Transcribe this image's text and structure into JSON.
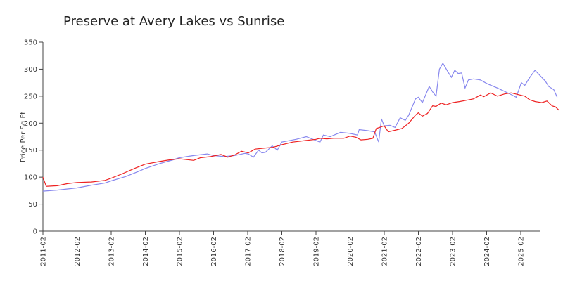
{
  "chart_data": {
    "type": "line",
    "title": "Preserve at Avery Lakes vs Sunrise",
    "xlabel": "",
    "ylabel": "Price Per Sq Ft",
    "ylim": [
      0,
      350
    ],
    "yticks": [
      0,
      50,
      100,
      150,
      200,
      250,
      300,
      350
    ],
    "xlim": [
      2011.083,
      2025.833
    ],
    "xticks": [
      {
        "label": "2011-02",
        "x": 2011.083
      },
      {
        "label": "2012-02",
        "x": 2012.083
      },
      {
        "label": "2013-02",
        "x": 2013.083
      },
      {
        "label": "2014-02",
        "x": 2014.083
      },
      {
        "label": "2015-02",
        "x": 2015.083
      },
      {
        "label": "2016-02",
        "x": 2016.083
      },
      {
        "label": "2017-02",
        "x": 2017.083
      },
      {
        "label": "2018-02",
        "x": 2018.083
      },
      {
        "label": "2019-02",
        "x": 2019.083
      },
      {
        "label": "2020-02",
        "x": 2020.083
      },
      {
        "label": "2021-02",
        "x": 2021.083
      },
      {
        "label": "2022-02",
        "x": 2022.083
      },
      {
        "label": "2023-02",
        "x": 2023.083
      },
      {
        "label": "2024-02",
        "x": 2024.083
      },
      {
        "label": "2025-02",
        "x": 2025.083
      }
    ],
    "series": [
      {
        "name": "Preserve at Avery Lakes",
        "color": "#8888ee",
        "points": [
          [
            2011.08,
            74
          ],
          [
            2011.5,
            76
          ],
          [
            2012.08,
            80
          ],
          [
            2012.5,
            85
          ],
          [
            2012.9,
            89
          ],
          [
            2013.08,
            93
          ],
          [
            2013.5,
            101
          ],
          [
            2013.9,
            111
          ],
          [
            2014.08,
            116
          ],
          [
            2014.5,
            125
          ],
          [
            2014.9,
            132
          ],
          [
            2015.08,
            136
          ],
          [
            2015.5,
            140
          ],
          [
            2015.9,
            143
          ],
          [
            2016.08,
            140
          ],
          [
            2016.4,
            138
          ],
          [
            2016.7,
            140
          ],
          [
            2017.0,
            144
          ],
          [
            2017.1,
            143
          ],
          [
            2017.25,
            137
          ],
          [
            2017.4,
            150
          ],
          [
            2017.5,
            145
          ],
          [
            2017.6,
            146
          ],
          [
            2017.8,
            158
          ],
          [
            2017.95,
            150
          ],
          [
            2018.08,
            165
          ],
          [
            2018.5,
            170
          ],
          [
            2018.8,
            175
          ],
          [
            2019.08,
            168
          ],
          [
            2019.2,
            165
          ],
          [
            2019.3,
            178
          ],
          [
            2019.5,
            175
          ],
          [
            2019.8,
            183
          ],
          [
            2020.08,
            181
          ],
          [
            2020.3,
            178
          ],
          [
            2020.35,
            188
          ],
          [
            2020.6,
            186
          ],
          [
            2020.8,
            184
          ],
          [
            2020.92,
            165
          ],
          [
            2021.0,
            208
          ],
          [
            2021.08,
            195
          ],
          [
            2021.25,
            196
          ],
          [
            2021.4,
            192
          ],
          [
            2021.55,
            210
          ],
          [
            2021.7,
            205
          ],
          [
            2021.8,
            215
          ],
          [
            2022.0,
            245
          ],
          [
            2022.08,
            248
          ],
          [
            2022.2,
            238
          ],
          [
            2022.4,
            268
          ],
          [
            2022.5,
            258
          ],
          [
            2022.6,
            250
          ],
          [
            2022.7,
            300
          ],
          [
            2022.8,
            311
          ],
          [
            2022.95,
            295
          ],
          [
            2023.05,
            285
          ],
          [
            2023.15,
            298
          ],
          [
            2023.25,
            292
          ],
          [
            2023.35,
            293
          ],
          [
            2023.45,
            265
          ],
          [
            2023.55,
            280
          ],
          [
            2023.7,
            282
          ],
          [
            2023.9,
            280
          ],
          [
            2024.1,
            273
          ],
          [
            2024.4,
            265
          ],
          [
            2024.6,
            259
          ],
          [
            2024.8,
            253
          ],
          [
            2024.95,
            248
          ],
          [
            2025.1,
            275
          ],
          [
            2025.2,
            270
          ],
          [
            2025.35,
            285
          ],
          [
            2025.5,
            298
          ],
          [
            2025.65,
            288
          ],
          [
            2025.8,
            278
          ],
          [
            2025.9,
            268
          ],
          [
            2026.05,
            262
          ],
          [
            2026.15,
            248
          ]
        ]
      },
      {
        "name": "Sunrise",
        "color": "#ee2222",
        "points": [
          [
            2011.08,
            100
          ],
          [
            2011.18,
            83
          ],
          [
            2011.5,
            84
          ],
          [
            2011.8,
            88
          ],
          [
            2012.08,
            90
          ],
          [
            2012.5,
            91
          ],
          [
            2012.9,
            94
          ],
          [
            2013.08,
            98
          ],
          [
            2013.4,
            106
          ],
          [
            2013.8,
            117
          ],
          [
            2014.08,
            124
          ],
          [
            2014.5,
            129
          ],
          [
            2014.8,
            132
          ],
          [
            2015.08,
            134
          ],
          [
            2015.5,
            131
          ],
          [
            2015.7,
            136
          ],
          [
            2016.0,
            138
          ],
          [
            2016.3,
            142
          ],
          [
            2016.5,
            137
          ],
          [
            2016.7,
            141
          ],
          [
            2016.9,
            148
          ],
          [
            2017.1,
            145
          ],
          [
            2017.3,
            152
          ],
          [
            2017.6,
            154
          ],
          [
            2017.8,
            155
          ],
          [
            2018.08,
            160
          ],
          [
            2018.4,
            165
          ],
          [
            2018.8,
            168
          ],
          [
            2019.08,
            170
          ],
          [
            2019.2,
            172
          ],
          [
            2019.4,
            171
          ],
          [
            2019.6,
            172
          ],
          [
            2019.9,
            172
          ],
          [
            2020.08,
            176
          ],
          [
            2020.25,
            174
          ],
          [
            2020.4,
            169
          ],
          [
            2020.6,
            170
          ],
          [
            2020.75,
            172
          ],
          [
            2020.85,
            190
          ],
          [
            2021.08,
            195
          ],
          [
            2021.2,
            184
          ],
          [
            2021.35,
            186
          ],
          [
            2021.6,
            190
          ],
          [
            2021.8,
            200
          ],
          [
            2022.0,
            215
          ],
          [
            2022.08,
            219
          ],
          [
            2022.2,
            213
          ],
          [
            2022.35,
            218
          ],
          [
            2022.5,
            232
          ],
          [
            2022.6,
            231
          ],
          [
            2022.75,
            237
          ],
          [
            2022.9,
            234
          ],
          [
            2023.08,
            238
          ],
          [
            2023.3,
            240
          ],
          [
            2023.55,
            243
          ],
          [
            2023.7,
            245
          ],
          [
            2023.9,
            252
          ],
          [
            2024.0,
            249
          ],
          [
            2024.2,
            256
          ],
          [
            2024.4,
            250
          ],
          [
            2024.6,
            254
          ],
          [
            2024.8,
            256
          ],
          [
            2025.0,
            253
          ],
          [
            2025.2,
            250
          ],
          [
            2025.35,
            243
          ],
          [
            2025.5,
            240
          ],
          [
            2025.7,
            238
          ],
          [
            2025.85,
            241
          ],
          [
            2026.0,
            232
          ],
          [
            2026.1,
            230
          ],
          [
            2026.2,
            224
          ]
        ]
      }
    ]
  }
}
